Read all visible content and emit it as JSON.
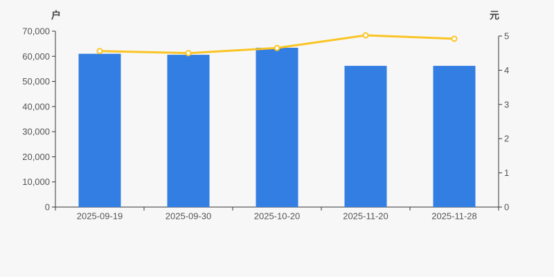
{
  "chart_data": {
    "type": "combo",
    "categories": [
      "2025-09-19",
      "2025-09-30",
      "2025-10-20",
      "2025-11-20",
      "2025-11-28"
    ],
    "series": [
      {
        "id": "holders-bars",
        "type": "bar",
        "axis": "left",
        "color": "#337ee2",
        "values": [
          61000,
          60600,
          63400,
          56200,
          56200
        ]
      },
      {
        "id": "price-line",
        "type": "line",
        "axis": "right",
        "color": "#fbc423",
        "marker_fill": "#ffffff",
        "values": [
          4.56,
          4.5,
          4.65,
          5.02,
          4.92
        ]
      }
    ],
    "left_axis": {
      "title": "户",
      "min": 0,
      "max": 70000,
      "tick_labels": [
        "0",
        "10,000",
        "20,000",
        "30,000",
        "40,000",
        "50,000",
        "60,000",
        "70,000"
      ]
    },
    "right_axis": {
      "title": "元",
      "min": 0,
      "max": 5,
      "tick_labels": [
        "0",
        "1",
        "2",
        "3",
        "4",
        "5"
      ]
    },
    "legend": "none",
    "grid": false,
    "colors": {
      "background": "#f7f7f7",
      "axis_line": "#333333",
      "tick_text": "#555555",
      "axis_title_text": "#444444"
    }
  }
}
